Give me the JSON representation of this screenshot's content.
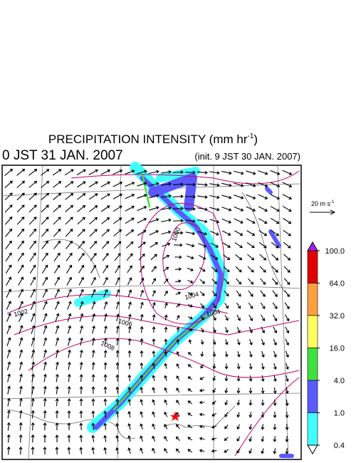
{
  "header": {
    "title": {
      "text": "PRECIPITATION INTENSITY (mm hr",
      "superscript": "-1",
      "suffix": ")"
    },
    "valid_time": "0 JST 31 JAN. 2007",
    "init_time": "(init. 9 JST 30 JAN. 2007)"
  },
  "wind_scale": {
    "text": "20 m s",
    "superscript": "-1"
  },
  "contour_labels": [
    1000,
    1002,
    1004,
    1004,
    1006,
    1008
  ],
  "colorbar": {
    "levels": [
      {
        "value": 100,
        "label": "100.0"
      },
      {
        "value": 64,
        "label": "64.0"
      },
      {
        "value": 32,
        "label": "32.0"
      },
      {
        "value": 16,
        "label": "16.0"
      },
      {
        "value": 4,
        "label": "4.0"
      },
      {
        "value": 1,
        "label": "1.0"
      },
      {
        "value": 0.4,
        "label": "0.4"
      }
    ],
    "colors": [
      "#e00000",
      "#ffa040",
      "#ffff60",
      "#40e040",
      "#5a5aff",
      "#40ffff"
    ],
    "over_color": "#a020f0",
    "under_color": "#ffffff"
  }
}
